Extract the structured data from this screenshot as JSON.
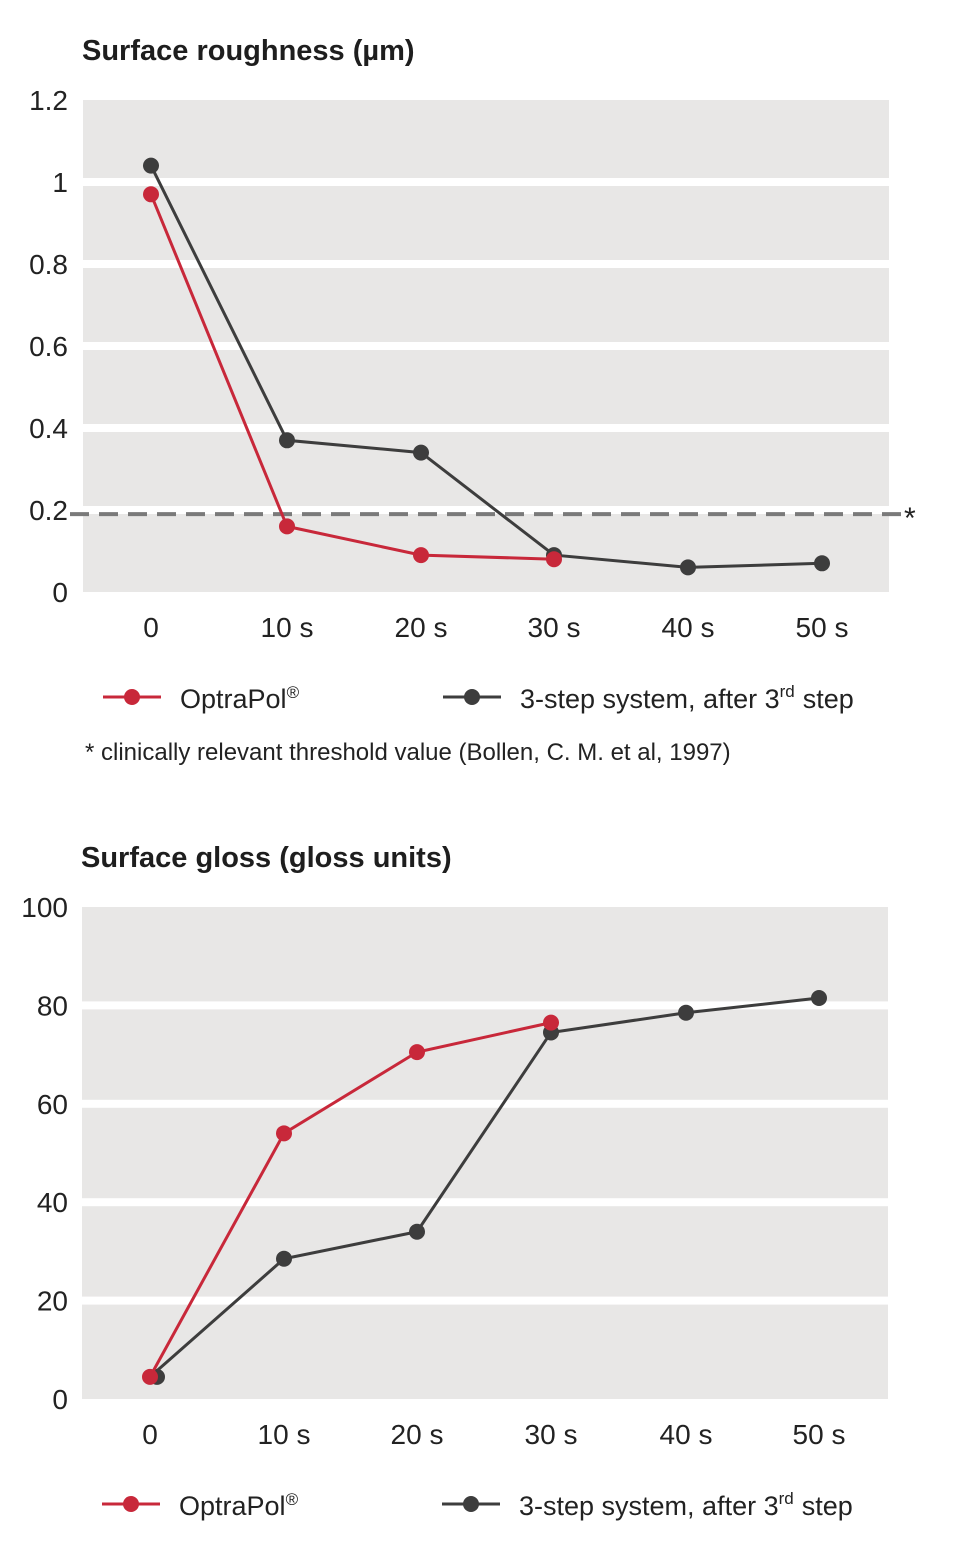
{
  "colors": {
    "optrapol": "#c8283a",
    "three_step": "#3d3d3d",
    "band": "#e8e7e6",
    "threshold_line": "#7a7a7a"
  },
  "chart_data": [
    {
      "type": "line",
      "title": "Surface roughness (µm)",
      "categories": [
        "0",
        "10 s",
        "20 s",
        "30 s",
        "40 s",
        "50 s"
      ],
      "yticks": [
        "0",
        "0.2",
        "0.4",
        "0.6",
        "0.8",
        "1",
        "1.2"
      ],
      "ylim": [
        0,
        1.2
      ],
      "grid": "horizontal bands",
      "series": [
        {
          "name": "OptraPol",
          "mark": "®",
          "color_key": "optrapol",
          "values": [
            0.97,
            0.16,
            0.09,
            0.08,
            null,
            null
          ]
        },
        {
          "name": "3-step system, after 3",
          "sup": "rd",
          "suffix": "step",
          "color_key": "three_step",
          "values": [
            1.04,
            0.37,
            0.34,
            0.09,
            0.06,
            0.07
          ]
        }
      ],
      "threshold": {
        "value": 0.19,
        "marker": "*"
      },
      "footnote": "* clinically relevant threshold value (Bollen, C. M. et al, 1997)"
    },
    {
      "type": "line",
      "title": "Surface gloss (gloss units)",
      "categories": [
        "0",
        "10 s",
        "20 s",
        "30 s",
        "40 s",
        "50 s"
      ],
      "yticks": [
        "0",
        "20",
        "40",
        "60",
        "80",
        "100"
      ],
      "ylim": [
        0,
        100
      ],
      "grid": "horizontal bands",
      "series": [
        {
          "name": "OptraPol",
          "mark": "®",
          "color_key": "optrapol",
          "values": [
            4.5,
            54,
            70.5,
            76.5,
            null,
            null
          ]
        },
        {
          "name": "3-step system, after 3",
          "sup": "rd",
          "suffix": "step",
          "color_key": "three_step",
          "values": [
            4.5,
            28.5,
            34,
            74.5,
            78.5,
            81.5
          ]
        }
      ]
    }
  ]
}
